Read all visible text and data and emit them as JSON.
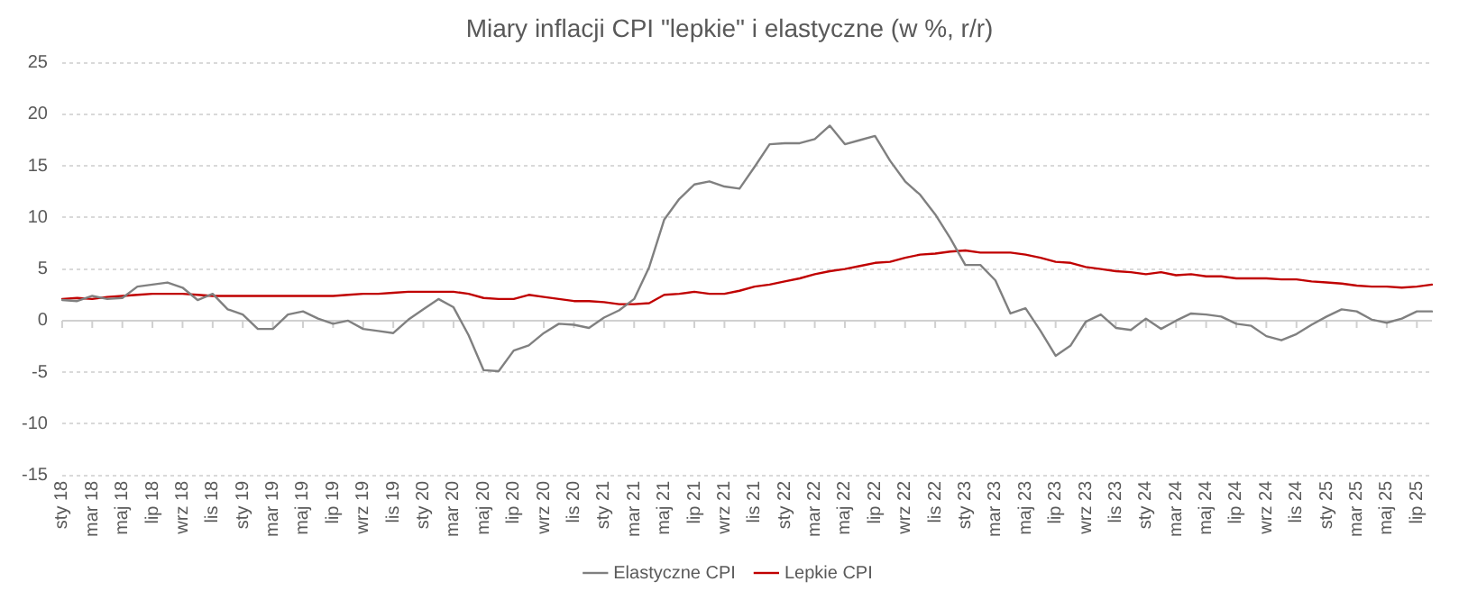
{
  "chart_data": {
    "type": "line",
    "title": "Miary inflacji CPI \"lepkie\" i elastyczne (w %, r/r)",
    "categories": [
      "sty 18",
      null,
      "mar 18",
      null,
      "maj 18",
      null,
      "lip 18",
      null,
      "wrz 18",
      null,
      "lis 18",
      null,
      "sty 19",
      null,
      "mar 19",
      null,
      "maj 19",
      null,
      "lip 19",
      null,
      "wrz 19",
      null,
      "lis 19",
      null,
      "sty 20",
      null,
      "mar 20",
      null,
      "maj 20",
      null,
      "lip 20",
      null,
      "wrz 20",
      null,
      "lis 20",
      null,
      "sty 21",
      null,
      "mar 21",
      null,
      "maj 21",
      null,
      "lip 21",
      null,
      "wrz 21",
      null,
      "lis 21",
      null,
      "sty 22",
      null,
      "mar 22",
      null,
      "maj 22",
      null,
      "lip 22",
      null,
      "wrz 22",
      null,
      "lis 22",
      null,
      "sty 23",
      null,
      "mar 23",
      null,
      "maj 23",
      null,
      "lip 23",
      null,
      "wrz 23",
      null,
      "lis 23",
      null,
      "sty 24",
      null,
      "mar 24",
      null,
      "maj 24",
      null,
      "lip 24",
      null,
      "wrz 24",
      null,
      "lis 24",
      null,
      "sty 25",
      null,
      "mar 25",
      null,
      "maj 25",
      null,
      "lip 25",
      null
    ],
    "series": [
      {
        "name": "Elastyczne CPI",
        "color": "#808080",
        "values": [
          2.0,
          1.9,
          2.4,
          2.1,
          2.2,
          3.3,
          3.5,
          3.7,
          3.2,
          2.0,
          2.6,
          1.1,
          0.6,
          -0.8,
          -0.8,
          0.6,
          0.9,
          0.2,
          -0.3,
          0.0,
          -0.8,
          -1.0,
          -1.2,
          0.1,
          1.1,
          2.1,
          1.3,
          -1.4,
          -4.8,
          -4.9,
          -2.9,
          -2.4,
          -1.2,
          -0.3,
          -0.4,
          -0.7,
          0.3,
          1.0,
          2.1,
          5.2,
          9.8,
          11.8,
          13.2,
          13.5,
          13.0,
          12.8,
          14.9,
          17.1,
          17.2,
          17.2,
          17.6,
          18.9,
          17.1,
          17.5,
          17.9,
          15.5,
          13.5,
          12.2,
          10.3,
          8.0,
          5.4,
          5.4,
          3.9,
          0.7,
          1.2,
          -1.0,
          -3.4,
          -2.4,
          -0.1,
          0.6,
          -0.7,
          -0.9,
          0.2,
          -0.8,
          0.0,
          0.7,
          0.6,
          0.4,
          -0.3,
          -0.5,
          -1.5,
          -1.9,
          -1.3,
          -0.4,
          0.4,
          1.1,
          0.9,
          0.1,
          -0.2,
          0.2,
          0.9,
          0.9
        ]
      },
      {
        "name": "Lepkie CPI",
        "color": "#c00000",
        "values": [
          2.1,
          2.2,
          2.1,
          2.3,
          2.4,
          2.5,
          2.6,
          2.6,
          2.6,
          2.5,
          2.4,
          2.4,
          2.4,
          2.4,
          2.4,
          2.4,
          2.4,
          2.4,
          2.4,
          2.5,
          2.6,
          2.6,
          2.7,
          2.8,
          2.8,
          2.8,
          2.8,
          2.6,
          2.2,
          2.1,
          2.1,
          2.5,
          2.3,
          2.1,
          1.9,
          1.9,
          1.8,
          1.6,
          1.6,
          1.7,
          2.5,
          2.6,
          2.8,
          2.6,
          2.6,
          2.9,
          3.3,
          3.5,
          3.8,
          4.1,
          4.5,
          4.8,
          5.0,
          5.3,
          5.6,
          5.7,
          6.1,
          6.4,
          6.5,
          6.7,
          6.8,
          6.6,
          6.6,
          6.6,
          6.4,
          6.1,
          5.7,
          5.6,
          5.2,
          5.0,
          4.8,
          4.7,
          4.5,
          4.7,
          4.4,
          4.5,
          4.3,
          4.3,
          4.1,
          4.1,
          4.1,
          4.0,
          4.0,
          3.8,
          3.7,
          3.6,
          3.4,
          3.3,
          3.3,
          3.2,
          3.3,
          3.5
        ]
      }
    ],
    "ylim": [
      -15,
      25
    ],
    "yticks": [
      -15,
      -10,
      -5,
      0,
      5,
      10,
      15,
      20,
      25
    ],
    "grid": "y",
    "legend": "bottom",
    "marker": "none",
    "line_style": "solid"
  }
}
